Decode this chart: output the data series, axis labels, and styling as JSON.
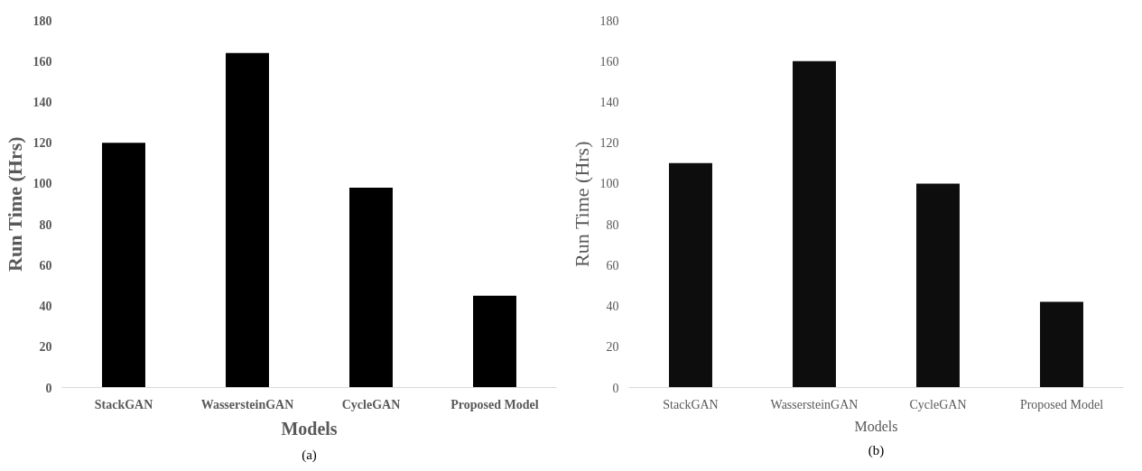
{
  "chart_data": [
    {
      "type": "bar",
      "categories": [
        "StackGAN",
        "WassersteinGAN",
        "CycleGAN",
        "Proposed Model"
      ],
      "values": [
        120,
        164,
        98,
        45
      ],
      "color": "#000000",
      "xlabel": "Models",
      "ylabel": "Run Time (Hrs)",
      "ylim": [
        0,
        180
      ],
      "yticks": [
        0,
        20,
        40,
        60,
        80,
        100,
        120,
        140,
        160,
        180
      ],
      "annotations": [
        "(a)"
      ]
    },
    {
      "type": "bar",
      "categories": [
        "StackGAN",
        "WassersteinGAN",
        "CycleGAN",
        "Proposed Model"
      ],
      "values": [
        110,
        160,
        100,
        42
      ],
      "color": "#0d0d0d",
      "xlabel": "Models",
      "ylabel": "Run Time (Hrs)",
      "ylim": [
        0,
        180
      ],
      "yticks": [
        0,
        20,
        40,
        60,
        80,
        100,
        120,
        140,
        160,
        180
      ],
      "annotations": [
        "(b)"
      ]
    }
  ]
}
